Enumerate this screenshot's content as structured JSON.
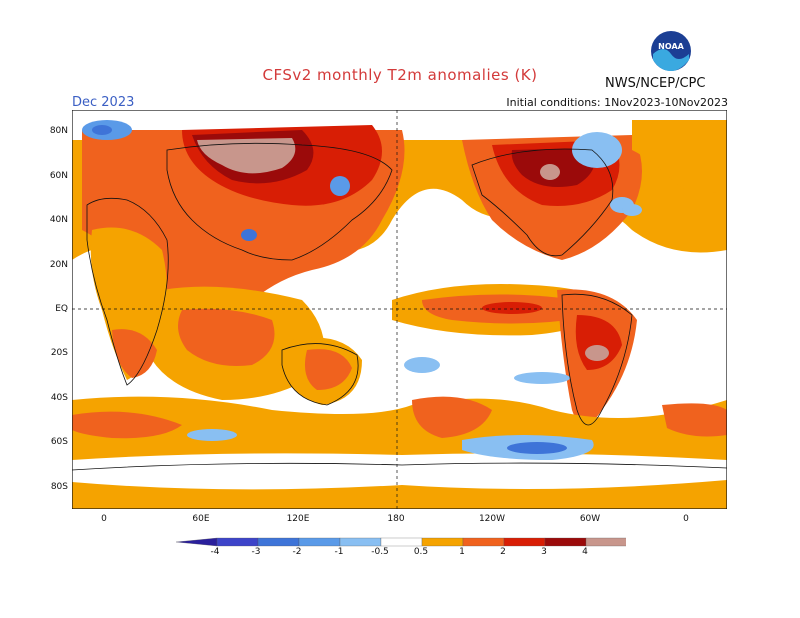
{
  "header": {
    "title": "CFSv2 monthly T2m anomalies (K)",
    "month": "Dec 2023",
    "initial_conditions": "Initial conditions: 1Nov2023-10Nov2023",
    "agency": "NWS/NCEP/CPC",
    "logo_text": "NOAA"
  },
  "axes": {
    "lat_labels": [
      "80N",
      "60N",
      "40N",
      "20N",
      "EQ",
      "20S",
      "40S",
      "60S",
      "80S"
    ],
    "lon_labels": [
      "0",
      "60E",
      "120E",
      "180",
      "120W",
      "60W",
      "0"
    ]
  },
  "legend": {
    "labels": [
      "-4",
      "-3",
      "-2",
      "-1",
      "-0.5",
      "0.5",
      "1",
      "2",
      "3",
      "4"
    ],
    "colors": [
      "#2a1f9c",
      "#3d44c9",
      "#3e74d8",
      "#5a9ae8",
      "#89bff2",
      "#ffffff",
      "#f5a300",
      "#f0621e",
      "#d81e05",
      "#9b0a0a",
      "#c8968c",
      "#7a5040"
    ]
  }
}
